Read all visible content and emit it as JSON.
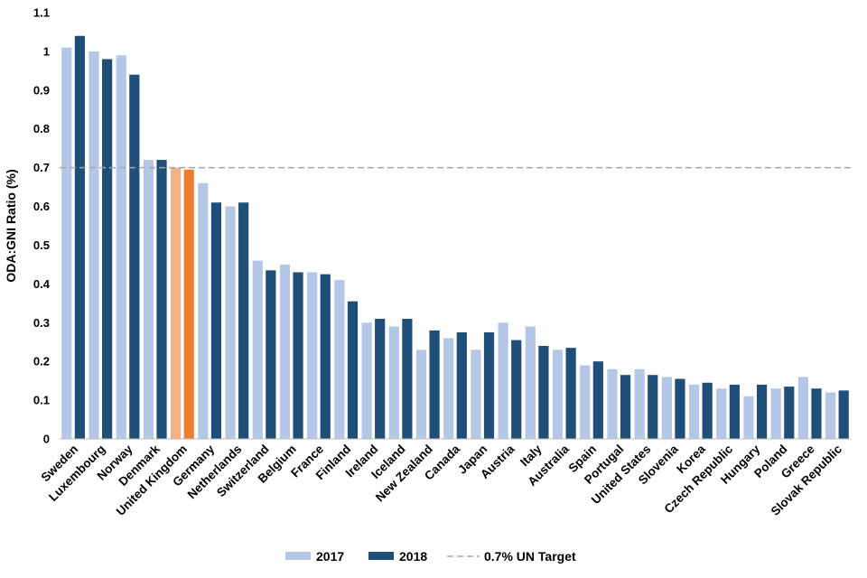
{
  "chart_data": {
    "type": "bar",
    "ylabel": "ODA:GNI Ratio (%)",
    "xlabel": "",
    "ylim": [
      0,
      1.1
    ],
    "yticks": [
      "0",
      "0.1",
      "0.2",
      "0.3",
      "0.4",
      "0.5",
      "0.6",
      "0.7",
      "0.8",
      "0.9",
      "1",
      "1.1"
    ],
    "grid": false,
    "legend_position": "bottom",
    "categories": [
      "Sweden",
      "Luxembourg",
      "Norway",
      "Denmark",
      "United Kingdom",
      "Germany",
      "Netherlands",
      "Switzerland",
      "Belgium",
      "France",
      "Finland",
      "Ireland",
      "Iceland",
      "New Zealand",
      "Canada",
      "Japan",
      "Austria",
      "Italy",
      "Australia",
      "Spain",
      "Portugal",
      "United States",
      "Slovenia",
      "Korea",
      "Czech Republic",
      "Hungary",
      "Poland",
      "Greece",
      "Slovak Republic"
    ],
    "series": [
      {
        "name": "2017",
        "color": "#b4c7e7",
        "highlight_color": "#f4b183",
        "values": [
          1.01,
          1.0,
          0.99,
          0.72,
          0.7,
          0.66,
          0.6,
          0.46,
          0.45,
          0.43,
          0.41,
          0.3,
          0.29,
          0.23,
          0.26,
          0.23,
          0.3,
          0.29,
          0.23,
          0.19,
          0.18,
          0.18,
          0.16,
          0.14,
          0.13,
          0.11,
          0.13,
          0.16,
          0.12
        ]
      },
      {
        "name": "2018",
        "color": "#1f4e79",
        "highlight_color": "#ed7d31",
        "values": [
          1.04,
          0.98,
          0.94,
          0.72,
          0.695,
          0.61,
          0.61,
          0.435,
          0.43,
          0.425,
          0.355,
          0.31,
          0.31,
          0.28,
          0.275,
          0.275,
          0.255,
          0.24,
          0.235,
          0.2,
          0.165,
          0.165,
          0.155,
          0.145,
          0.14,
          0.14,
          0.135,
          0.13,
          0.125
        ]
      }
    ],
    "highlight_category": "United Kingdom",
    "reference_line": {
      "name": "0.7% UN Target",
      "value": 0.7,
      "color": "#a6a6a6",
      "style": "dashed"
    }
  }
}
